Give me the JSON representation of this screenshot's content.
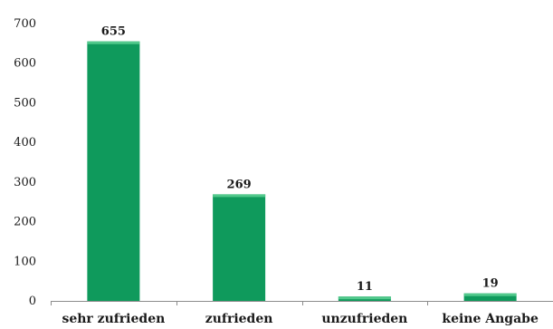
{
  "chart_data": {
    "type": "bar",
    "categories": [
      "sehr zufrieden",
      "zufrieden",
      "unzufrieden",
      "keine Angabe"
    ],
    "values": [
      655,
      269,
      11,
      19
    ],
    "title": "",
    "xlabel": "",
    "ylabel": "",
    "ylim": [
      0,
      700
    ],
    "yticks": [
      0,
      100,
      200,
      300,
      400,
      500,
      600,
      700
    ],
    "ytick_labels": [
      "0",
      "100",
      "200",
      "300",
      "400",
      "500",
      "600",
      "700"
    ],
    "data_labels": [
      "655",
      "269",
      "11",
      "19"
    ],
    "bar_color": "#0f9a5c",
    "bar_highlight_color": "#52c98c",
    "axis_color": "#8c8c8c",
    "grid": false,
    "legend": "none"
  }
}
